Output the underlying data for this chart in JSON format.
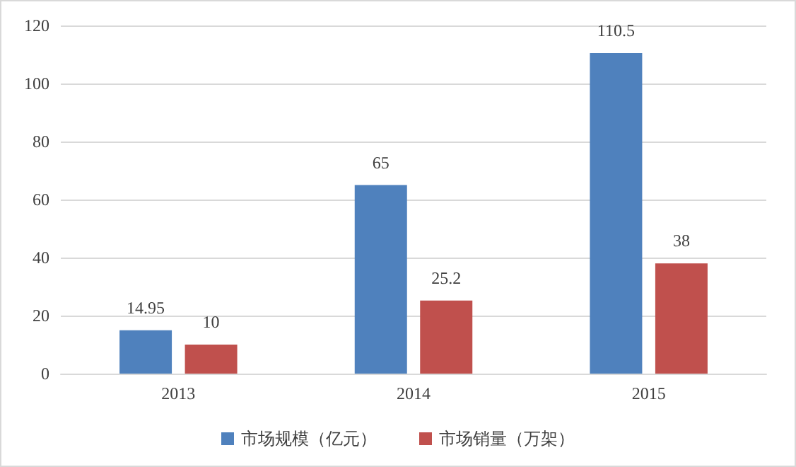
{
  "chart_data": {
    "type": "bar",
    "categories": [
      "2013",
      "2014",
      "2015"
    ],
    "series": [
      {
        "name": "市场规模（亿元）",
        "color": "#4f81bd",
        "values": [
          14.95,
          65,
          110.5
        ]
      },
      {
        "name": "市场销量（万架）",
        "color": "#c0504d",
        "values": [
          10,
          25.2,
          38
        ]
      }
    ],
    "ylim": [
      0,
      120
    ],
    "yticks": [
      0,
      20,
      40,
      60,
      80,
      100,
      120
    ],
    "grid": "y",
    "legend": "bottom",
    "data_labels": true
  }
}
